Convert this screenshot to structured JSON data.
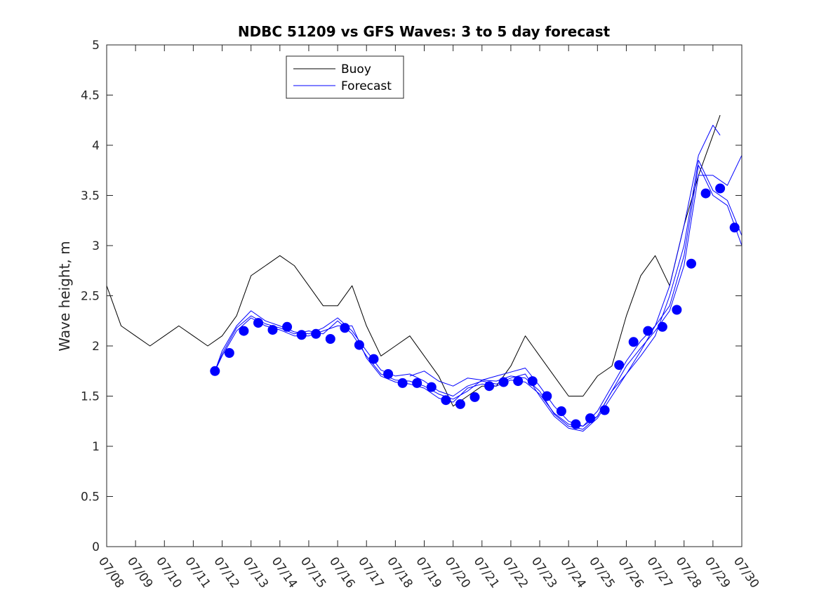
{
  "chart_data": {
    "type": "line",
    "title": "NDBC 51209 vs GFS Waves: 3 to 5 day forecast",
    "xlabel": "",
    "ylabel": "Wave height, m",
    "xlim": [
      "2020-07-08",
      "2020-07-30"
    ],
    "ylim": [
      0,
      5
    ],
    "yticks": [
      "0",
      "0.5",
      "1",
      "1.5",
      "2",
      "2.5",
      "3",
      "3.5",
      "4",
      "4.5",
      "5"
    ],
    "xticks": [
      "07/08",
      "07/09",
      "07/10",
      "07/11",
      "07/12",
      "07/13",
      "07/14",
      "07/15",
      "07/16",
      "07/17",
      "07/18",
      "07/19",
      "07/20",
      "07/21",
      "07/22",
      "07/23",
      "07/24",
      "07/25",
      "07/26",
      "07/27",
      "07/28",
      "07/29",
      "07/30"
    ],
    "grid": false,
    "legend": {
      "position": "top-center",
      "entries": [
        "Buoy",
        "Forecast"
      ]
    },
    "colors": {
      "buoy": "#000000",
      "forecast": "#0000ff",
      "marker": "#0000ff",
      "axes": "#262626"
    },
    "series": [
      {
        "name": "Buoy",
        "x": [
          "07/08 00:00",
          "07/08 12:00",
          "07/09 00:00",
          "07/09 12:00",
          "07/10 00:00",
          "07/10 12:00",
          "07/11 00:00",
          "07/11 12:00",
          "07/12 00:00",
          "07/12 12:00",
          "07/13 00:00",
          "07/13 12:00",
          "07/14 00:00",
          "07/14 12:00",
          "07/15 00:00",
          "07/15 12:00",
          "07/16 00:00",
          "07/16 12:00",
          "07/17 00:00",
          "07/17 12:00",
          "07/18 00:00",
          "07/18 12:00",
          "07/19 00:00",
          "07/19 12:00",
          "07/20 00:00",
          "07/20 12:00",
          "07/21 00:00",
          "07/21 12:00",
          "07/22 00:00",
          "07/22 12:00",
          "07/23 00:00",
          "07/23 12:00",
          "07/24 00:00",
          "07/24 12:00",
          "07/25 00:00",
          "07/25 12:00",
          "07/26 00:00",
          "07/26 12:00",
          "07/27 00:00",
          "07/27 12:00",
          "07/28 00:00",
          "07/28 12:00",
          "07/29 00:00",
          "07/29 06:00"
        ],
        "values": [
          2.6,
          2.2,
          2.1,
          2.0,
          2.1,
          2.2,
          2.1,
          2.0,
          2.1,
          2.3,
          2.7,
          2.8,
          2.9,
          2.8,
          2.6,
          2.4,
          2.4,
          2.6,
          2.2,
          1.9,
          2.0,
          2.1,
          1.9,
          1.7,
          1.4,
          1.5,
          1.6,
          1.6,
          1.8,
          2.1,
          1.9,
          1.7,
          1.5,
          1.5,
          1.7,
          1.8,
          2.3,
          2.7,
          2.9,
          2.6,
          3.2,
          3.7,
          4.1,
          4.3
        ]
      },
      {
        "name": "Forecast",
        "x": [
          "07/11 18:00",
          "07/12 00:00",
          "07/12 12:00",
          "07/13 00:00",
          "07/13 12:00",
          "07/14 00:00",
          "07/14 12:00",
          "07/15 00:00",
          "07/15 12:00",
          "07/16 00:00",
          "07/16 12:00",
          "07/17 00:00",
          "07/17 12:00",
          "07/18 00:00",
          "07/18 12:00",
          "07/19 00:00",
          "07/19 12:00",
          "07/20 00:00",
          "07/20 12:00",
          "07/21 00:00",
          "07/21 12:00",
          "07/22 00:00",
          "07/22 12:00",
          "07/23 00:00",
          "07/23 12:00",
          "07/24 00:00",
          "07/24 12:00",
          "07/25 00:00",
          "07/25 12:00",
          "07/26 00:00",
          "07/26 12:00",
          "07/27 00:00",
          "07/27 12:00",
          "07/28 00:00",
          "07/28 12:00",
          "07/29 00:00",
          "07/29 12:00",
          "07/30 00:00"
        ],
        "values": [
          1.75,
          1.92,
          2.18,
          2.3,
          2.22,
          2.18,
          2.12,
          2.15,
          2.12,
          2.25,
          2.12,
          1.9,
          1.72,
          1.66,
          1.65,
          1.6,
          1.52,
          1.47,
          1.55,
          1.66,
          1.65,
          1.7,
          1.68,
          1.55,
          1.32,
          1.2,
          1.17,
          1.3,
          1.55,
          1.8,
          1.98,
          2.15,
          2.35,
          2.8,
          3.7,
          3.7,
          3.6,
          3.9
        ]
      },
      {
        "name": "Forecast",
        "x": [
          "07/11 18:00",
          "07/12 00:00",
          "07/12 12:00",
          "07/13 00:00",
          "07/13 12:00",
          "07/14 00:00",
          "07/14 12:00",
          "07/15 00:00",
          "07/15 12:00",
          "07/16 00:00",
          "07/16 12:00",
          "07/17 00:00",
          "07/17 12:00",
          "07/18 00:00",
          "07/18 12:00",
          "07/19 00:00",
          "07/19 12:00",
          "07/20 00:00",
          "07/20 12:00",
          "07/21 00:00",
          "07/21 12:00",
          "07/22 00:00",
          "07/22 12:00",
          "07/23 00:00",
          "07/23 12:00",
          "07/24 00:00",
          "07/24 12:00",
          "07/25 00:00",
          "07/25 12:00",
          "07/26 00:00",
          "07/26 12:00",
          "07/27 00:00",
          "07/27 12:00",
          "07/28 00:00",
          "07/28 12:00",
          "07/29 00:00",
          "07/29 12:00",
          "07/30 00:00"
        ],
        "values": [
          1.75,
          1.95,
          2.2,
          2.35,
          2.25,
          2.2,
          2.14,
          2.12,
          2.18,
          2.28,
          2.15,
          1.95,
          1.76,
          1.7,
          1.72,
          1.65,
          1.55,
          1.5,
          1.6,
          1.65,
          1.62,
          1.68,
          1.72,
          1.5,
          1.3,
          1.18,
          1.15,
          1.28,
          1.5,
          1.72,
          1.9,
          2.1,
          2.5,
          3.0,
          3.85,
          3.55,
          3.45,
          3.1
        ]
      },
      {
        "name": "Forecast",
        "x": [
          "07/11 18:00",
          "07/12 00:00",
          "07/12 12:00",
          "07/13 00:00",
          "07/13 12:00",
          "07/14 00:00",
          "07/14 12:00",
          "07/15 00:00",
          "07/15 12:00",
          "07/16 00:00",
          "07/16 12:00",
          "07/17 00:00",
          "07/17 12:00",
          "07/18 00:00",
          "07/18 12:00",
          "07/19 00:00",
          "07/19 12:00",
          "07/20 00:00",
          "07/20 12:00",
          "07/21 00:00",
          "07/21 12:00",
          "07/22 00:00",
          "07/22 12:00",
          "07/23 00:00",
          "07/23 12:00",
          "07/24 00:00",
          "07/24 12:00",
          "07/25 00:00",
          "07/25 12:00",
          "07/26 00:00",
          "07/26 12:00",
          "07/27 00:00",
          "07/27 12:00",
          "07/28 00:00",
          "07/28 12:00",
          "07/29 00:00",
          "07/29 12:00",
          "07/30 00:00"
        ],
        "values": [
          1.75,
          1.9,
          2.15,
          2.28,
          2.2,
          2.16,
          2.1,
          2.1,
          2.15,
          2.2,
          2.2,
          1.88,
          1.7,
          1.64,
          1.62,
          1.58,
          1.48,
          1.44,
          1.58,
          1.62,
          1.6,
          1.66,
          1.64,
          1.52,
          1.33,
          1.22,
          1.2,
          1.35,
          1.6,
          1.85,
          2.05,
          2.2,
          2.4,
          2.9,
          3.8,
          3.5,
          3.4,
          3.0
        ]
      },
      {
        "name": "Forecast",
        "x": [
          "07/18 12:00",
          "07/19 00:00",
          "07/19 12:00",
          "07/20 00:00",
          "07/20 12:00",
          "07/21 00:00",
          "07/21 12:00",
          "07/22 00:00",
          "07/22 12:00",
          "07/23 00:00",
          "07/23 12:00",
          "07/24 00:00",
          "07/24 12:00",
          "07/25 00:00",
          "07/25 12:00",
          "07/26 00:00",
          "07/26 12:00",
          "07/27 00:00",
          "07/27 12:00",
          "07/28 00:00",
          "07/28 12:00",
          "07/29 00:00",
          "07/29 06:00"
        ],
        "values": [
          1.7,
          1.75,
          1.65,
          1.6,
          1.68,
          1.66,
          1.7,
          1.74,
          1.78,
          1.6,
          1.4,
          1.25,
          1.2,
          1.3,
          1.55,
          1.72,
          1.95,
          2.2,
          2.6,
          3.2,
          3.9,
          4.2,
          4.1
        ]
      }
    ],
    "markers": {
      "x": [
        "07/11 18:00",
        "07/12 06:00",
        "07/12 18:00",
        "07/13 06:00",
        "07/13 18:00",
        "07/14 06:00",
        "07/14 18:00",
        "07/15 06:00",
        "07/15 18:00",
        "07/16 06:00",
        "07/16 18:00",
        "07/17 06:00",
        "07/17 18:00",
        "07/18 06:00",
        "07/18 18:00",
        "07/19 06:00",
        "07/19 18:00",
        "07/20 06:00",
        "07/20 18:00",
        "07/21 06:00",
        "07/21 18:00",
        "07/22 06:00",
        "07/22 18:00",
        "07/23 06:00",
        "07/23 18:00",
        "07/24 06:00",
        "07/24 18:00",
        "07/25 06:00",
        "07/25 18:00",
        "07/26 06:00",
        "07/26 18:00",
        "07/27 06:00",
        "07/27 18:00",
        "07/28 06:00",
        "07/28 18:00",
        "07/29 06:00",
        "07/29 18:00"
      ],
      "values": [
        1.75,
        1.93,
        2.15,
        2.23,
        2.16,
        2.19,
        2.11,
        2.12,
        2.07,
        2.18,
        2.01,
        1.87,
        1.72,
        1.63,
        1.63,
        1.59,
        1.46,
        1.42,
        1.49,
        1.6,
        1.64,
        1.65,
        1.65,
        1.5,
        1.35,
        1.22,
        1.28,
        1.36,
        1.81,
        2.04,
        2.15,
        2.19,
        2.36,
        2.82,
        3.52,
        3.57,
        3.18
      ]
    }
  }
}
